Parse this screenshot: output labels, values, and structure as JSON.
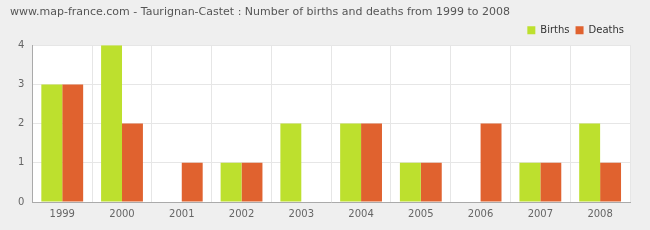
{
  "chart_data": {
    "type": "bar",
    "title": "www.map-france.com - Taurignan-Castet : Number of births and deaths from 1999 to 2008",
    "categories": [
      "1999",
      "2000",
      "2001",
      "2002",
      "2003",
      "2004",
      "2005",
      "2006",
      "2007",
      "2008"
    ],
    "series": [
      {
        "name": "Births",
        "color": "#bde02e",
        "values": [
          3,
          4,
          0,
          1,
          2,
          2,
          1,
          0,
          1,
          2
        ]
      },
      {
        "name": "Deaths",
        "color": "#e0622f",
        "values": [
          3,
          2,
          1,
          1,
          0,
          2,
          1,
          2,
          1,
          1
        ]
      }
    ],
    "ylim": [
      0,
      4
    ],
    "yticks": [
      0,
      1,
      2,
      3,
      4
    ],
    "grid": true,
    "legend": "top-right"
  }
}
